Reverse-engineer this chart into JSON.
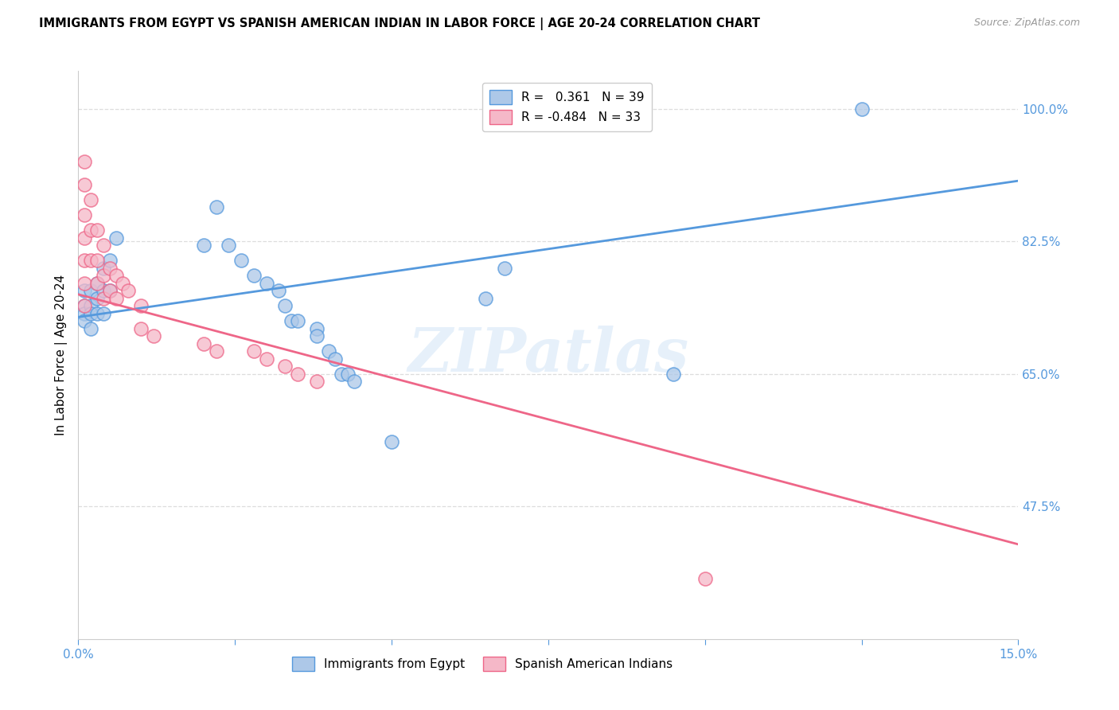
{
  "title": "IMMIGRANTS FROM EGYPT VS SPANISH AMERICAN INDIAN IN LABOR FORCE | AGE 20-24 CORRELATION CHART",
  "source": "Source: ZipAtlas.com",
  "ylabel": "In Labor Force | Age 20-24",
  "xmin": 0.0,
  "xmax": 0.15,
  "ymin": 0.3,
  "ymax": 1.05,
  "yticks": [
    0.475,
    0.65,
    0.825,
    1.0
  ],
  "ytick_labels": [
    "47.5%",
    "65.0%",
    "82.5%",
    "100.0%"
  ],
  "xticks": [
    0.0,
    0.025,
    0.05,
    0.075,
    0.1,
    0.125,
    0.15
  ],
  "xtick_labels": [
    "0.0%",
    "",
    "",
    "",
    "",
    "",
    "15.0%"
  ],
  "blue_color": "#adc8e8",
  "pink_color": "#f5b8c8",
  "blue_line_color": "#5599dd",
  "pink_line_color": "#ee6688",
  "blue_scatter": [
    [
      0.001,
      0.76
    ],
    [
      0.001,
      0.74
    ],
    [
      0.001,
      0.73
    ],
    [
      0.001,
      0.72
    ],
    [
      0.002,
      0.76
    ],
    [
      0.002,
      0.74
    ],
    [
      0.002,
      0.73
    ],
    [
      0.002,
      0.71
    ],
    [
      0.003,
      0.77
    ],
    [
      0.003,
      0.75
    ],
    [
      0.003,
      0.73
    ],
    [
      0.004,
      0.79
    ],
    [
      0.004,
      0.76
    ],
    [
      0.004,
      0.73
    ],
    [
      0.005,
      0.8
    ],
    [
      0.005,
      0.76
    ],
    [
      0.006,
      0.83
    ],
    [
      0.02,
      0.82
    ],
    [
      0.022,
      0.87
    ],
    [
      0.024,
      0.82
    ],
    [
      0.026,
      0.8
    ],
    [
      0.028,
      0.78
    ],
    [
      0.03,
      0.77
    ],
    [
      0.032,
      0.76
    ],
    [
      0.033,
      0.74
    ],
    [
      0.034,
      0.72
    ],
    [
      0.035,
      0.72
    ],
    [
      0.038,
      0.71
    ],
    [
      0.038,
      0.7
    ],
    [
      0.04,
      0.68
    ],
    [
      0.041,
      0.67
    ],
    [
      0.042,
      0.65
    ],
    [
      0.043,
      0.65
    ],
    [
      0.044,
      0.64
    ],
    [
      0.05,
      0.56
    ],
    [
      0.065,
      0.75
    ],
    [
      0.068,
      0.79
    ],
    [
      0.095,
      0.65
    ],
    [
      0.125,
      1.0
    ]
  ],
  "pink_scatter": [
    [
      0.001,
      0.93
    ],
    [
      0.001,
      0.9
    ],
    [
      0.001,
      0.86
    ],
    [
      0.001,
      0.83
    ],
    [
      0.001,
      0.8
    ],
    [
      0.001,
      0.77
    ],
    [
      0.001,
      0.74
    ],
    [
      0.002,
      0.88
    ],
    [
      0.002,
      0.84
    ],
    [
      0.002,
      0.8
    ],
    [
      0.003,
      0.84
    ],
    [
      0.003,
      0.8
    ],
    [
      0.003,
      0.77
    ],
    [
      0.004,
      0.82
    ],
    [
      0.004,
      0.78
    ],
    [
      0.004,
      0.75
    ],
    [
      0.005,
      0.79
    ],
    [
      0.005,
      0.76
    ],
    [
      0.006,
      0.78
    ],
    [
      0.006,
      0.75
    ],
    [
      0.007,
      0.77
    ],
    [
      0.008,
      0.76
    ],
    [
      0.01,
      0.74
    ],
    [
      0.01,
      0.71
    ],
    [
      0.012,
      0.7
    ],
    [
      0.02,
      0.69
    ],
    [
      0.022,
      0.68
    ],
    [
      0.028,
      0.68
    ],
    [
      0.03,
      0.67
    ],
    [
      0.033,
      0.66
    ],
    [
      0.035,
      0.65
    ],
    [
      0.038,
      0.64
    ],
    [
      0.1,
      0.38
    ]
  ],
  "blue_regline": [
    0.0,
    0.15,
    0.725,
    0.905
  ],
  "pink_regline": [
    0.0,
    0.15,
    0.755,
    0.425
  ],
  "watermark": "ZIPatlas",
  "axis_color": "#cccccc",
  "grid_color": "#dddddd",
  "tick_color_right": "#5599dd",
  "tick_color_bottom": "#5599dd",
  "legend_labels": [
    "R =   0.361   N = 39",
    "R = -0.484   N = 33"
  ],
  "bottom_legend": [
    "Immigrants from Egypt",
    "Spanish American Indians"
  ]
}
